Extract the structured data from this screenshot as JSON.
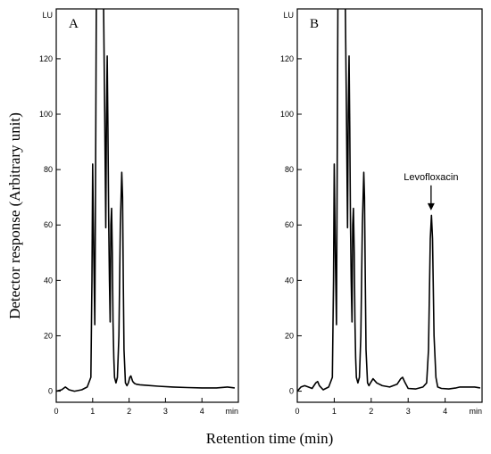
{
  "chart_data": [
    {
      "type": "line",
      "panel_label": "A",
      "xlim": [
        0,
        5
      ],
      "ylim": [
        -4,
        138
      ],
      "xticks": [
        0,
        1,
        2,
        3,
        4
      ],
      "xunit": "min",
      "yticks": [
        0,
        20,
        40,
        60,
        80,
        100,
        120
      ],
      "yunit": "LU",
      "series": [
        {
          "x": [
            0,
            0.15,
            0.25,
            0.35,
            0.5,
            0.7,
            0.85,
            0.95,
            0.98,
            1.0,
            1.03,
            1.06,
            1.08,
            1.1,
            1.14,
            1.2,
            1.3,
            1.33,
            1.36,
            1.38,
            1.4,
            1.42,
            1.44,
            1.46,
            1.48,
            1.5,
            1.52,
            1.54,
            1.56,
            1.58,
            1.6,
            1.64,
            1.68,
            1.72,
            1.76,
            1.8,
            1.82,
            1.84,
            1.86,
            1.9,
            1.94,
            1.98,
            2.02,
            2.05,
            2.1,
            2.15,
            2.2,
            2.3,
            2.5,
            2.8,
            3.2,
            3.6,
            4.0,
            4.4,
            4.7,
            4.9
          ],
          "y": [
            0,
            0.5,
            1.5,
            0.5,
            0,
            0.5,
            1.5,
            5,
            40,
            82,
            50,
            24,
            80,
            140,
            140,
            140,
            140,
            100,
            59,
            100,
            121,
            95,
            60,
            40,
            25,
            60,
            66,
            50,
            25,
            12,
            5,
            3,
            5,
            20,
            60,
            79,
            70,
            40,
            15,
            3,
            2,
            3,
            5,
            5.5,
            3.5,
            2.8,
            2.5,
            2.3,
            2.1,
            1.8,
            1.5,
            1.3,
            1.2,
            1.2,
            1.5,
            1.2
          ]
        }
      ]
    },
    {
      "type": "line",
      "panel_label": "B",
      "xlim": [
        0,
        5
      ],
      "ylim": [
        -4,
        138
      ],
      "xticks": [
        0,
        1,
        2,
        3,
        4
      ],
      "xunit": "min",
      "yticks": [
        0,
        20,
        40,
        60,
        80,
        100,
        120
      ],
      "yunit": "LU",
      "annotations": [
        {
          "text": "Levofloxacin",
          "x": 3.62,
          "y": 64
        }
      ],
      "series": [
        {
          "x": [
            0,
            0.1,
            0.2,
            0.3,
            0.4,
            0.5,
            0.55,
            0.6,
            0.7,
            0.85,
            0.95,
            0.98,
            1.0,
            1.03,
            1.06,
            1.08,
            1.1,
            1.14,
            1.2,
            1.3,
            1.33,
            1.36,
            1.38,
            1.4,
            1.42,
            1.44,
            1.46,
            1.48,
            1.5,
            1.52,
            1.54,
            1.56,
            1.58,
            1.6,
            1.64,
            1.68,
            1.72,
            1.76,
            1.8,
            1.82,
            1.84,
            1.86,
            1.9,
            1.94,
            1.98,
            2.05,
            2.15,
            2.3,
            2.5,
            2.7,
            2.8,
            2.85,
            2.9,
            3.0,
            3.2,
            3.4,
            3.5,
            3.55,
            3.6,
            3.63,
            3.66,
            3.7,
            3.75,
            3.8,
            3.9,
            4.1,
            4.3,
            4.4,
            4.6,
            4.8,
            4.95
          ],
          "y": [
            0,
            1.5,
            2,
            1.5,
            1,
            3,
            3.5,
            2,
            0.5,
            1.5,
            5,
            40,
            82,
            50,
            24,
            80,
            140,
            140,
            140,
            140,
            100,
            59,
            100,
            121,
            95,
            60,
            40,
            25,
            60,
            66,
            50,
            25,
            12,
            5,
            3,
            5,
            20,
            60,
            79,
            70,
            40,
            15,
            3,
            2,
            3,
            4.5,
            3,
            2,
            1.5,
            2.5,
            4.5,
            5,
            3.5,
            1,
            0.8,
            1.5,
            3,
            15,
            55,
            63.5,
            55,
            20,
            5,
            1.5,
            1,
            0.8,
            1.2,
            1.5,
            1.5,
            1.5,
            1.2
          ]
        }
      ]
    }
  ],
  "ylabel": "Detector response (Arbitrary unit)",
  "xlabel": "Retention time (min)"
}
